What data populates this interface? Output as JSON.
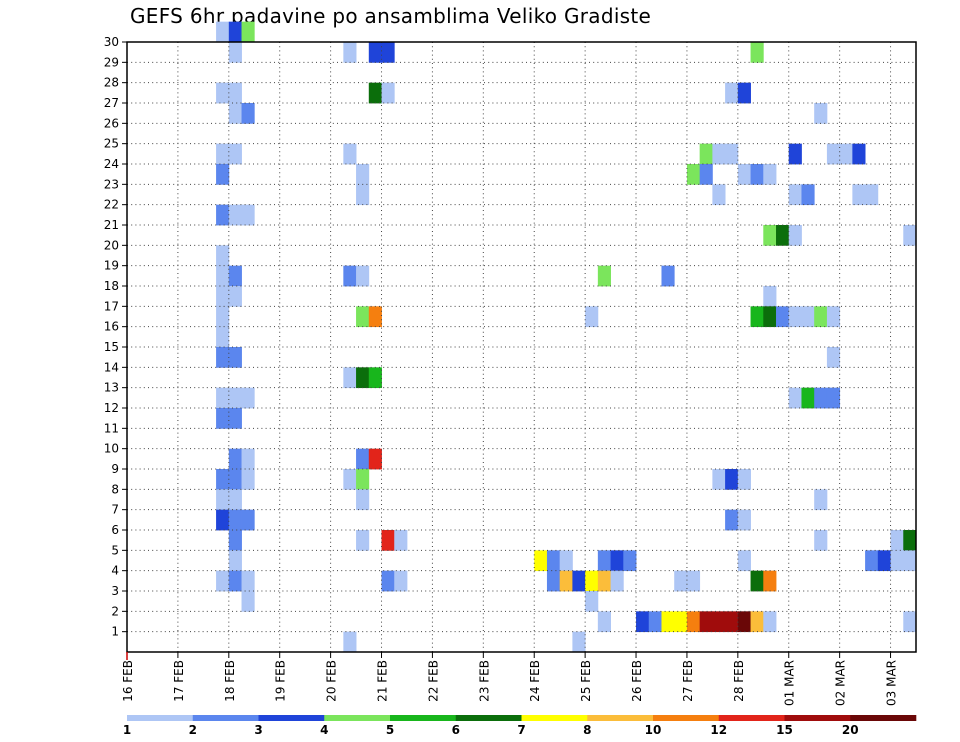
{
  "chart_data": {
    "type": "heatmap",
    "title": "GEFS 6hr padavine po ansamblima Veliko Gradiste",
    "x_start": "16 FEB",
    "x_steps_per_day": 4,
    "x_total_steps": 62,
    "x_tick_labels": [
      "16 FEB",
      "17 FEB",
      "18 FEB",
      "19 FEB",
      "20 FEB",
      "21 FEB",
      "22 FEB",
      "23 FEB",
      "24 FEB",
      "25 FEB",
      "26 FEB",
      "27 FEB",
      "28 FEB",
      "01 MAR",
      "02 MAR",
      "03 MAR"
    ],
    "y_tick_labels": [
      "1",
      "2",
      "3",
      "4",
      "5",
      "6",
      "7",
      "8",
      "9",
      "10",
      "11",
      "12",
      "13",
      "14",
      "15",
      "16",
      "17",
      "18",
      "19",
      "20",
      "21",
      "22",
      "23",
      "24",
      "25",
      "26",
      "27",
      "28",
      "29",
      "30"
    ],
    "ylim": [
      0,
      30
    ],
    "grid": true,
    "colorbar": {
      "bins": [
        "1",
        "2",
        "3",
        "4",
        "5",
        "6",
        "7",
        "8",
        "10",
        "12",
        "15",
        "20"
      ],
      "labels": [
        "1",
        "2",
        "3",
        "4",
        "5",
        "6",
        "7",
        "8",
        "10",
        "12",
        "15",
        "20"
      ],
      "colors": [
        "#aec6f5",
        "#5b86ee",
        "#1f44d9",
        "#7be55c",
        "#18b61c",
        "#0b6e0b",
        "#ffff00",
        "#fbbd3a",
        "#f57f0f",
        "#e2241a",
        "#a00c0c",
        "#6a0707"
      ]
    },
    "cells": [
      [
        7,
        30,
        0
      ],
      [
        8,
        30,
        2
      ],
      [
        9,
        30,
        3
      ],
      [
        8,
        29,
        0
      ],
      [
        17,
        29,
        0
      ],
      [
        19,
        29,
        2
      ],
      [
        20,
        29,
        2
      ],
      [
        49,
        29,
        3
      ],
      [
        7,
        27,
        0
      ],
      [
        8,
        27,
        0
      ],
      [
        19,
        27,
        5
      ],
      [
        20,
        27,
        0
      ],
      [
        47,
        27,
        0
      ],
      [
        48,
        27,
        2
      ],
      [
        8,
        26,
        0
      ],
      [
        9,
        26,
        1
      ],
      [
        54,
        26,
        0
      ],
      [
        7,
        24,
        0
      ],
      [
        8,
        24,
        0
      ],
      [
        17,
        24,
        0
      ],
      [
        45,
        24,
        3
      ],
      [
        46,
        24,
        0
      ],
      [
        47,
        24,
        0
      ],
      [
        52,
        24,
        2
      ],
      [
        55,
        24,
        0
      ],
      [
        56,
        24,
        0
      ],
      [
        57,
        24,
        2
      ],
      [
        7,
        23,
        1
      ],
      [
        18,
        23,
        0
      ],
      [
        44,
        23,
        3
      ],
      [
        45,
        23,
        1
      ],
      [
        48,
        23,
        0
      ],
      [
        49,
        23,
        1
      ],
      [
        50,
        23,
        0
      ],
      [
        18,
        22,
        0
      ],
      [
        46,
        22,
        0
      ],
      [
        52,
        22,
        0
      ],
      [
        53,
        22,
        1
      ],
      [
        57,
        22,
        0
      ],
      [
        58,
        22,
        0
      ],
      [
        7,
        21,
        1
      ],
      [
        8,
        21,
        0
      ],
      [
        9,
        21,
        0
      ],
      [
        50,
        20,
        3
      ],
      [
        51,
        20,
        5
      ],
      [
        52,
        20,
        0
      ],
      [
        61,
        20,
        0
      ],
      [
        7,
        19,
        0
      ],
      [
        7,
        18,
        0
      ],
      [
        8,
        18,
        1
      ],
      [
        17,
        18,
        1
      ],
      [
        18,
        18,
        0
      ],
      [
        37,
        18,
        3
      ],
      [
        42,
        18,
        1
      ],
      [
        7,
        17,
        0
      ],
      [
        8,
        17,
        0
      ],
      [
        50,
        17,
        0
      ],
      [
        7,
        16,
        0
      ],
      [
        18,
        16,
        3
      ],
      [
        19,
        16,
        8
      ],
      [
        36,
        16,
        0
      ],
      [
        49,
        16,
        4
      ],
      [
        50,
        16,
        5
      ],
      [
        51,
        16,
        1
      ],
      [
        52,
        16,
        0
      ],
      [
        53,
        16,
        0
      ],
      [
        54,
        16,
        3
      ],
      [
        55,
        16,
        0
      ],
      [
        7,
        15,
        0
      ],
      [
        7,
        14,
        1
      ],
      [
        8,
        14,
        1
      ],
      [
        55,
        14,
        0
      ],
      [
        17,
        13,
        0
      ],
      [
        18,
        13,
        5
      ],
      [
        19,
        13,
        4
      ],
      [
        7,
        12,
        0
      ],
      [
        8,
        12,
        0
      ],
      [
        9,
        12,
        0
      ],
      [
        52,
        12,
        0
      ],
      [
        53,
        12,
        4
      ],
      [
        54,
        12,
        1
      ],
      [
        55,
        12,
        1
      ],
      [
        7,
        11,
        1
      ],
      [
        8,
        11,
        1
      ],
      [
        8,
        9,
        1
      ],
      [
        9,
        9,
        0
      ],
      [
        18,
        9,
        1
      ],
      [
        19,
        9,
        9
      ],
      [
        7,
        8,
        1
      ],
      [
        8,
        8,
        1
      ],
      [
        9,
        8,
        0
      ],
      [
        17,
        8,
        0
      ],
      [
        18,
        8,
        3
      ],
      [
        46,
        8,
        0
      ],
      [
        47,
        8,
        2
      ],
      [
        48,
        8,
        0
      ],
      [
        7,
        7,
        0
      ],
      [
        8,
        7,
        0
      ],
      [
        18,
        7,
        0
      ],
      [
        54,
        7,
        0
      ],
      [
        7,
        6,
        2
      ],
      [
        8,
        6,
        1
      ],
      [
        9,
        6,
        1
      ],
      [
        47,
        6,
        1
      ],
      [
        48,
        6,
        0
      ],
      [
        8,
        5,
        1
      ],
      [
        18,
        5,
        0
      ],
      [
        20,
        5,
        9
      ],
      [
        21,
        5,
        0
      ],
      [
        54,
        5,
        0
      ],
      [
        60,
        5,
        0
      ],
      [
        61,
        5,
        5
      ],
      [
        8,
        4,
        0
      ],
      [
        32,
        4,
        6
      ],
      [
        33,
        4,
        1
      ],
      [
        34,
        4,
        0
      ],
      [
        37,
        4,
        1
      ],
      [
        38,
        4,
        2
      ],
      [
        39,
        4,
        1
      ],
      [
        48,
        4,
        0
      ],
      [
        58,
        4,
        1
      ],
      [
        59,
        4,
        2
      ],
      [
        60,
        4,
        0
      ],
      [
        61,
        4,
        0
      ],
      [
        7,
        3,
        0
      ],
      [
        8,
        3,
        1
      ],
      [
        9,
        3,
        0
      ],
      [
        20,
        3,
        1
      ],
      [
        21,
        3,
        0
      ],
      [
        33,
        3,
        1
      ],
      [
        34,
        3,
        7
      ],
      [
        35,
        3,
        2
      ],
      [
        36,
        3,
        6
      ],
      [
        37,
        3,
        7
      ],
      [
        38,
        3,
        0
      ],
      [
        43,
        3,
        0
      ],
      [
        44,
        3,
        0
      ],
      [
        49,
        3,
        5
      ],
      [
        50,
        3,
        8
      ],
      [
        9,
        2,
        0
      ],
      [
        36,
        2,
        0
      ],
      [
        37,
        1,
        0
      ],
      [
        40,
        1,
        2
      ],
      [
        41,
        1,
        1
      ],
      [
        42,
        1,
        6
      ],
      [
        43,
        1,
        6
      ],
      [
        44,
        1,
        8
      ],
      [
        45,
        1,
        10
      ],
      [
        46,
        1,
        10
      ],
      [
        47,
        1,
        10
      ],
      [
        48,
        1,
        11
      ],
      [
        49,
        1,
        7
      ],
      [
        50,
        1,
        0
      ],
      [
        61,
        1,
        0
      ],
      [
        17,
        0,
        0
      ],
      [
        35,
        0,
        0
      ]
    ]
  }
}
